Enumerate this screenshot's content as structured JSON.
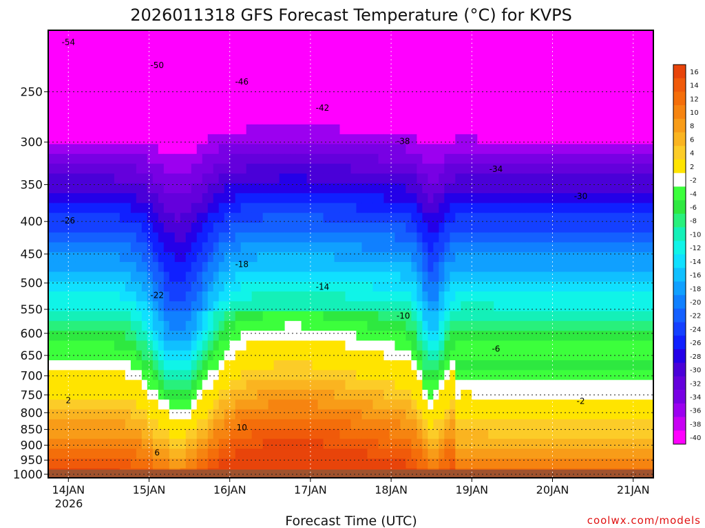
{
  "chart_data": {
    "type": "heatmap",
    "title": "2026011318 GFS Forecast Temperature (°C) for KVPS",
    "xlabel": "Forecast Time (UTC)",
    "ylabel": "",
    "credit": "coolwx.com/models",
    "x_ticks": [
      "14JAN",
      "15JAN",
      "16JAN",
      "17JAN",
      "18JAN",
      "19JAN",
      "20JAN",
      "21JAN"
    ],
    "x_year": "2026",
    "y_ticks": [
      250,
      300,
      350,
      400,
      450,
      500,
      550,
      600,
      650,
      700,
      750,
      800,
      850,
      900,
      950,
      1000
    ],
    "y_scale": "log (pressure, hPa)",
    "ylim": [
      1013,
      200
    ],
    "xlim": [
      "2026-01-13T18",
      "2026-01-21T06"
    ],
    "grid": true,
    "colorbar": {
      "levels": [
        16,
        14,
        12,
        10,
        8,
        6,
        4,
        2,
        -2,
        -4,
        -6,
        -8,
        -10,
        -12,
        -14,
        -16,
        -18,
        -20,
        -22,
        -24,
        -26,
        -28,
        -30,
        -32,
        -34,
        -36,
        -38,
        -40
      ],
      "colors": [
        "#e8440a",
        "#f05a0a",
        "#f46e0a",
        "#f68410",
        "#f89c18",
        "#fab420",
        "#fccc28",
        "#ffe400",
        "#ffffff",
        "#3cff3c",
        "#2ee840",
        "#28f07c",
        "#14f0b8",
        "#10f4e8",
        "#10e0ff",
        "#10c0ff",
        "#10a0ff",
        "#1080ff",
        "#1460ff",
        "#1440ff",
        "#1020ff",
        "#2400e8",
        "#4a00d8",
        "#6400dc",
        "#7800e4",
        "#9c00f0",
        "#c800f4",
        "#ff00ff"
      ]
    },
    "series": [
      {
        "name": "",
        "contour_labels": [
          -54,
          -50,
          -46,
          -42,
          -38,
          -34,
          -30,
          -26,
          -22,
          -18,
          -14,
          -10,
          -6,
          -2,
          2,
          6,
          10
        ]
      }
    ],
    "surface_color": "#a0522d",
    "freezing_line_color": "#e6006e"
  }
}
